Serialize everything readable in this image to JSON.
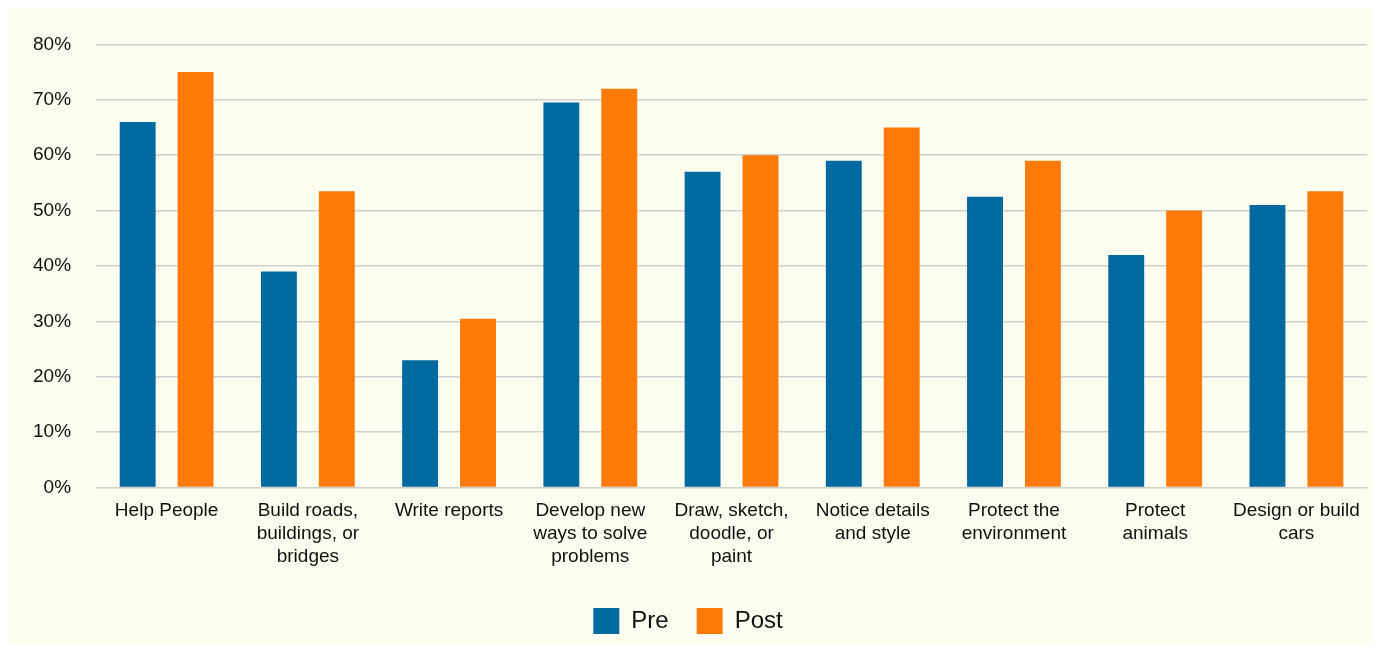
{
  "chart_data": {
    "type": "bar",
    "categories": [
      "Help People",
      "Build roads, buildings, or bridges",
      "Write reports",
      "Develop new ways to solve problems",
      "Draw, sketch, doodle, or paint",
      "Notice details and style",
      "Protect the environment",
      "Protect animals",
      "Design or build cars"
    ],
    "series": [
      {
        "name": "Pre",
        "color": "#0069a0",
        "values": [
          66,
          39,
          23,
          69.5,
          57,
          59,
          52.5,
          42,
          51
        ]
      },
      {
        "name": "Post",
        "color": "#ff7a08",
        "values": [
          75,
          53.5,
          30.5,
          72,
          60,
          65,
          59,
          50,
          53.5
        ]
      }
    ],
    "ylim": [
      0,
      80
    ],
    "yticks": [
      {
        "value": 0,
        "label": "0%"
      },
      {
        "value": 10,
        "label": "10%"
      },
      {
        "value": 20,
        "label": "20%"
      },
      {
        "value": 30,
        "label": "30%"
      },
      {
        "value": 40,
        "label": "40%"
      },
      {
        "value": 50,
        "label": "50%"
      },
      {
        "value": 60,
        "label": "60%"
      },
      {
        "value": 70,
        "label": "70%"
      },
      {
        "value": 80,
        "label": "80%"
      }
    ],
    "grid": "y",
    "legend": "bottom"
  }
}
